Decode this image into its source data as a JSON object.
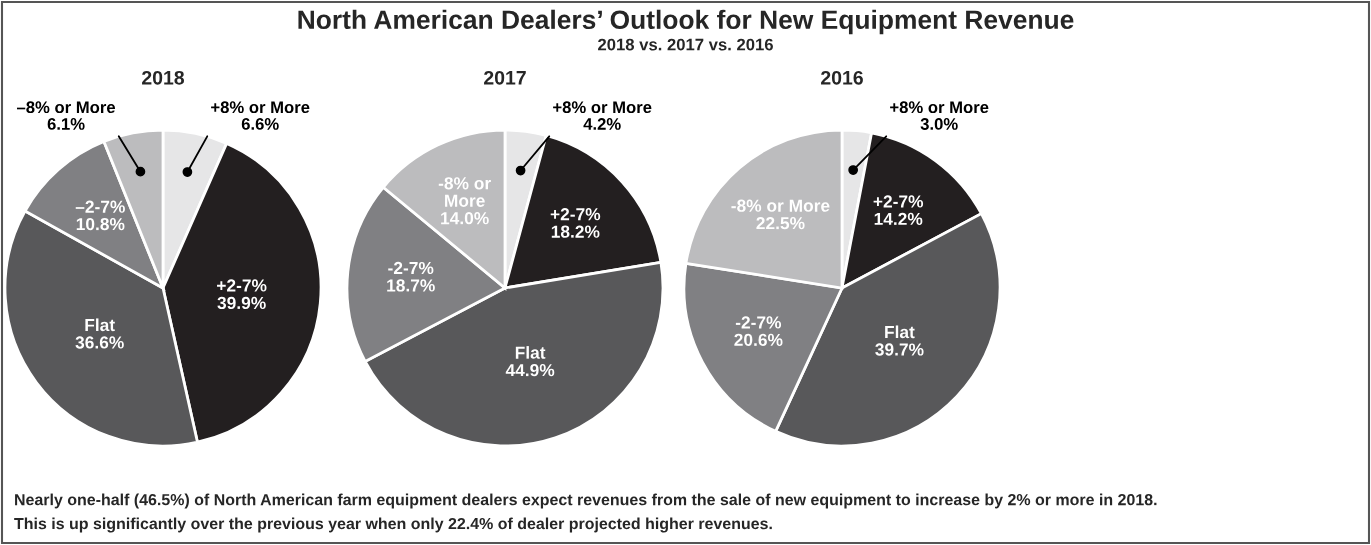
{
  "chart_data": [
    {
      "type": "other",
      "title": "North American Dealers’ Outlook for New Equipment Revenue",
      "subtitle": "2018 vs. 2017 vs. 2016",
      "annotations": [
        "Nearly one-half (46.5%) of North American farm equipment dealers expect revenues from the sale of new equipment to increase by 2% or more in 2018.",
        "This is up significantly over the previous year when only 22.4% of dealer projected higher revenues."
      ]
    },
    {
      "type": "pie",
      "title": "2018",
      "categories": [
        "+8% or More",
        "+2-7%",
        "Flat",
        "–2-7%",
        "–8% or More"
      ],
      "values": [
        6.6,
        39.9,
        36.6,
        10.8,
        6.1
      ],
      "value_labels": [
        "6.6%",
        "39.9%",
        "36.6%",
        "10.8%",
        "6.1%"
      ],
      "colors": [
        "#e6e6e7",
        "#231f20",
        "#58585a",
        "#808083",
        "#bcbcbe"
      ]
    },
    {
      "type": "pie",
      "title": "2017",
      "categories": [
        "+8% or More",
        "+2-7%",
        "Flat",
        "-2-7%",
        "-8% or\nMore"
      ],
      "values": [
        4.2,
        18.2,
        44.9,
        18.7,
        14.0
      ],
      "value_labels": [
        "4.2%",
        "18.2%",
        "44.9%",
        "18.7%",
        "14.0%"
      ],
      "colors": [
        "#e6e6e7",
        "#231f20",
        "#58585a",
        "#808083",
        "#bcbcbe"
      ]
    },
    {
      "type": "pie",
      "title": "2016",
      "categories": [
        "+8% or More",
        "+2-7%",
        "Flat",
        "-2-7%",
        "-8% or More"
      ],
      "values": [
        3.0,
        14.2,
        39.7,
        20.6,
        22.5
      ],
      "value_labels": [
        "3.0%",
        "14.2%",
        "39.7%",
        "20.6%",
        "22.5%"
      ],
      "colors": [
        "#e6e6e7",
        "#231f20",
        "#58585a",
        "#808083",
        "#bcbcbe"
      ]
    }
  ]
}
